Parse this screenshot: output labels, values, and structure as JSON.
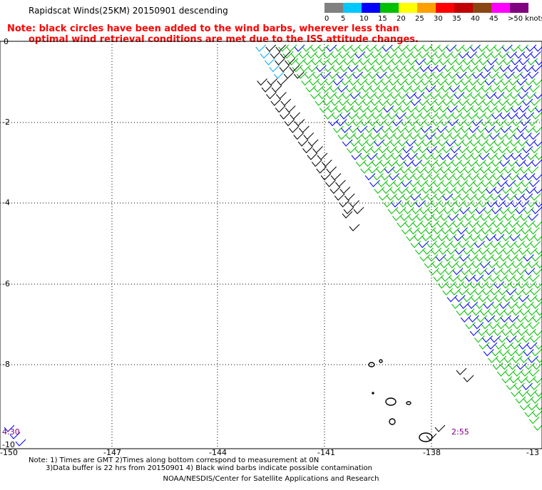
{
  "title": "Rapidscat Winds(25KM) 20150901 descending",
  "note": {
    "line1": "Note: black circles have been added to the wind barbs, wherever less than",
    "line2": "optimal wind retrieval conditions are met due to the ISS attitude changes."
  },
  "color_scale": {
    "labels": [
      "0",
      "5",
      "10",
      "15",
      "20",
      "25",
      "30",
      "35",
      "40",
      "45",
      ">50 knots"
    ],
    "colors": [
      "#808080",
      "#00c8ff",
      "#0000ff",
      "#00c000",
      "#ffff00",
      "#ffa000",
      "#ff0000",
      "#c00000",
      "#8b4513",
      "#ff00ff",
      "#800080"
    ]
  },
  "map": {
    "lat_labels": [
      "0",
      "-2",
      "-4",
      "-6",
      "-8",
      "-10"
    ],
    "lon_labels": [
      "-150",
      "-147",
      "-144",
      "-141",
      "-138",
      "-13"
    ],
    "time_left": "4:30",
    "time_right": "2:55",
    "barb_colors": {
      "green": "#00c000",
      "blue": "#0000ff",
      "black": "#000000",
      "cyan": "#00a8ff",
      "yellow": "#ffff00",
      "land": "#000000",
      "grid": "#000000"
    }
  },
  "footer": {
    "line1": "Note: 1) Times are GMT 2)Times along bottom correspond to measurement at 0N",
    "line2": "3)Data buffer is 22 hrs from 20150901 4) Black wind barbs indicate possible contamination",
    "credit": "NOAA/NESDIS/Center for Satellite Applications and Research"
  }
}
